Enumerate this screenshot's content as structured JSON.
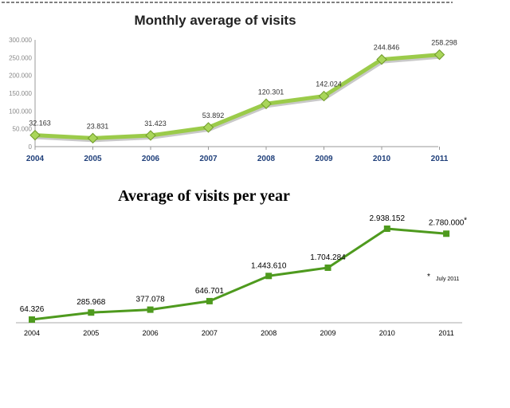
{
  "chart_data": [
    {
      "type": "line",
      "title": "Monthly average of visits",
      "categories": [
        "2004",
        "2005",
        "2006",
        "2007",
        "2008",
        "2009",
        "2010",
        "2011"
      ],
      "values": [
        32163,
        23831,
        31423,
        53892,
        120301,
        142024,
        244846,
        258298
      ],
      "value_labels": [
        "32.163",
        "23.831",
        "31.423",
        "53.892",
        "120.301",
        "142.024",
        "244.846",
        "258.298"
      ],
      "ylim": [
        0,
        300000
      ],
      "ytick_values": [
        0,
        50000,
        100000,
        150000,
        200000,
        250000,
        300000
      ],
      "yticks": [
        "0",
        "50.000",
        "100.000",
        "150.000",
        "200.000",
        "250.000",
        "300.000"
      ],
      "grid": false,
      "line_color": "#9bcb4a",
      "marker": "diamond"
    },
    {
      "type": "line",
      "title": "Average of visits per year",
      "categories": [
        "2004",
        "2005",
        "2006",
        "2007",
        "2008",
        "2009",
        "2010",
        "2011"
      ],
      "values": [
        64326,
        285968,
        377078,
        646701,
        1443610,
        1704284,
        2938152,
        2780000
      ],
      "value_labels": [
        "64.326",
        "285.968",
        "377.078",
        "646.701",
        "1.443.610",
        "1.704.284",
        "2.938.152",
        "2.780.000"
      ],
      "footnote_marker": "*",
      "footnote_text": "July 2011",
      "line_color": "#4e9a1e",
      "marker": "square"
    }
  ]
}
